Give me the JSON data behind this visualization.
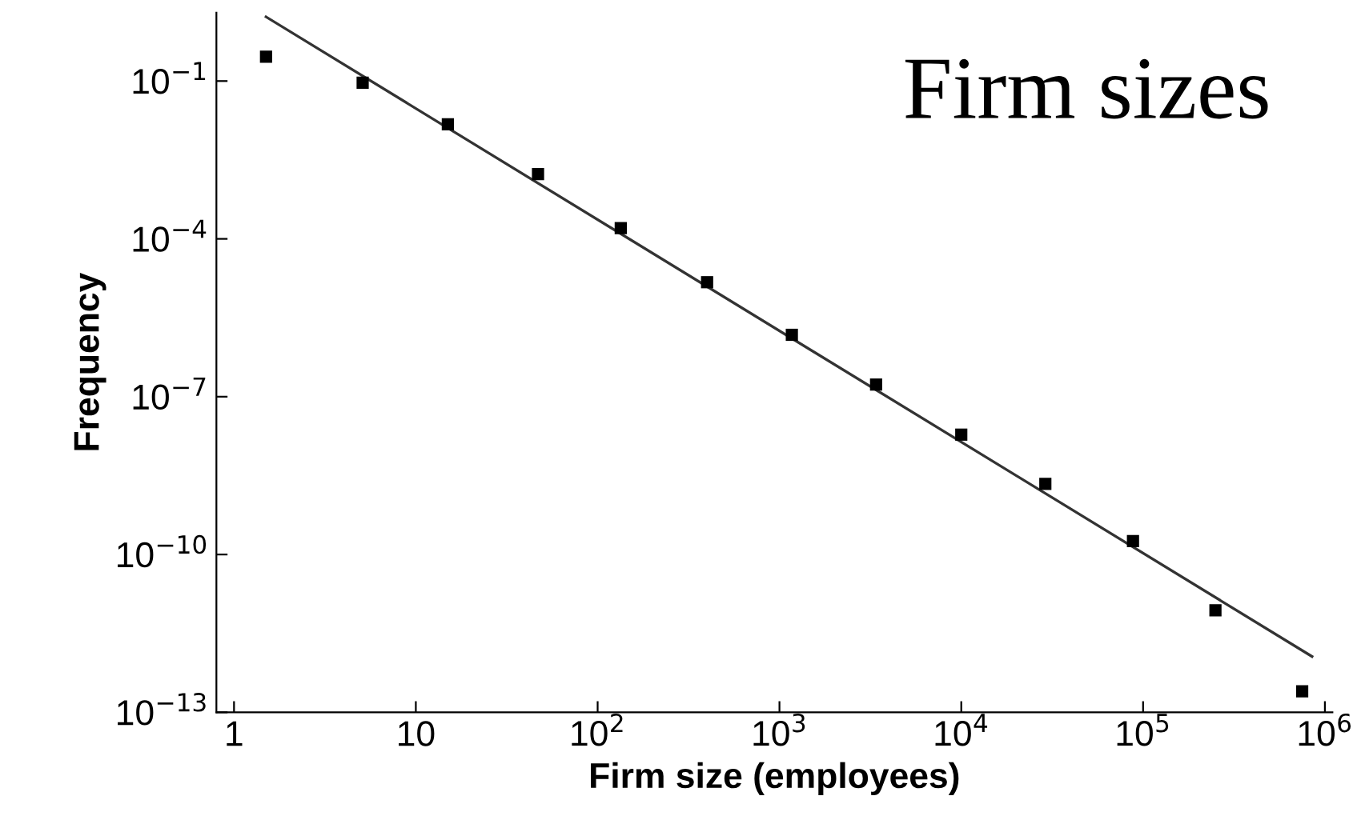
{
  "chart_data": {
    "type": "scatter",
    "xlabel": "Firm size (employees)",
    "ylabel": "Frequency",
    "annotations": [
      "Firm sizes"
    ],
    "log": "xy",
    "grid": false,
    "legend": false,
    "xlim": [
      0.8,
      1100000
    ],
    "ylim": [
      1e-13,
      2
    ],
    "xticks": [
      1,
      10,
      {
        "value": 100,
        "label": "10$^{2}$"
      },
      {
        "value": 1000,
        "label": "10$^{3}$"
      },
      {
        "value": 10000,
        "label": "10$^{4}$"
      },
      {
        "value": 100000,
        "label": "10$^{5}$"
      },
      {
        "value": 1000000,
        "label": "10$^{6}$"
      }
    ],
    "yticks": [
      {
        "value": 0.1,
        "label": "10$^{−1}$"
      },
      {
        "value": 0.0001,
        "label": "10$^{−4}$"
      },
      {
        "value": 1e-07,
        "label": "10$^{−7}$"
      },
      {
        "value": 1e-10,
        "label": "10$^{−10}$"
      },
      {
        "value": 1e-13,
        "label": "10$^{−13}$"
      }
    ],
    "series": [
      {
        "marker": "square",
        "color": "#000000",
        "x": [
          1.5,
          5.1,
          15,
          47,
          134,
          400,
          1170,
          3400,
          10000,
          29000,
          88000,
          250000,
          750000
        ],
        "values": [
          0.29,
          0.093,
          0.015,
          0.0017,
          0.00016,
          1.5e-05,
          1.5e-06,
          1.7e-07,
          1.9e-08,
          2.2e-09,
          1.8e-10,
          8.7e-12,
          2.5e-13
        ]
      },
      {
        "type": "line",
        "color": "#333333",
        "x": [
          1.5,
          850000
        ],
        "values": [
          1.66,
          1.15e-12
        ]
      }
    ]
  }
}
